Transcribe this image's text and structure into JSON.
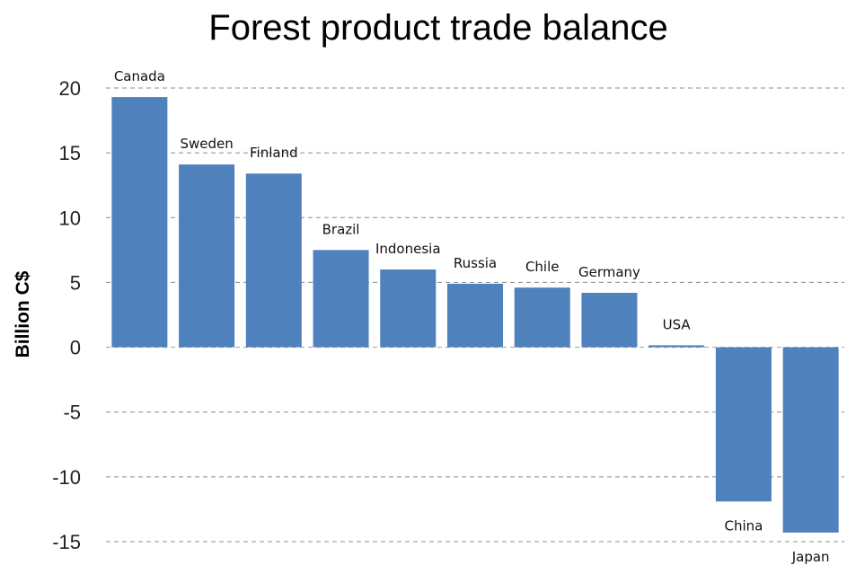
{
  "chart_data": {
    "type": "bar",
    "title": "Forest product trade balance",
    "xlabel": "",
    "ylabel": "Billion C$",
    "categories": [
      "Canada",
      "Sweden",
      "Finland",
      "Brazil",
      "Indonesia",
      "Russia",
      "Chile",
      "Germany",
      "USA",
      "China",
      "Japan"
    ],
    "values": [
      19.3,
      14.1,
      13.4,
      7.5,
      6.0,
      4.9,
      4.6,
      4.2,
      0.15,
      -11.9,
      -14.3
    ],
    "ylim": [
      -15,
      20
    ],
    "yticks": [
      "20",
      "15",
      "10",
      "5",
      "0",
      "-5",
      "-10",
      "-15"
    ],
    "grid": true,
    "bar_color": "#4f81bd",
    "legend": "none"
  }
}
